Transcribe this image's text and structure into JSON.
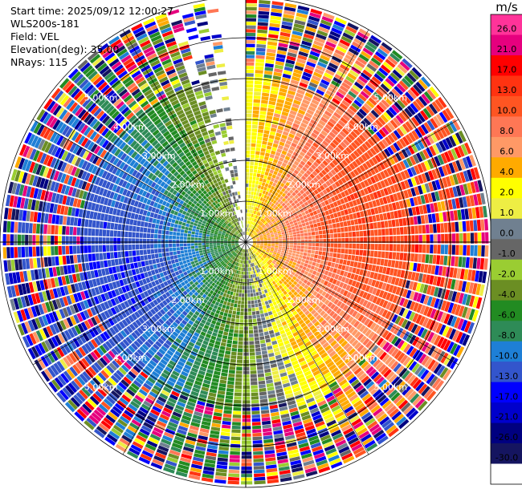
{
  "info": {
    "start_time": "Start time: 2025/09/12 12:00:27",
    "instrument": "WLS200s-181",
    "field": "Field: VEL",
    "elevation": "Elevation(deg): 35.00",
    "nrays": "NRays: 115"
  },
  "chart_data": {
    "type": "heatmap",
    "projection": "polar-ppi",
    "field": "VEL",
    "units": "m/s",
    "elevation_deg": 35.0,
    "n_rays": 115,
    "max_range_km": 6.0,
    "range_rings_km": [
      1.0,
      2.0,
      3.0,
      4.0,
      5.0,
      6.0
    ],
    "range_ring_labels": [
      "1.00km",
      "2.00km",
      "3.00km",
      "4.00km",
      "5.00km"
    ],
    "colorbar": {
      "label": "m/s",
      "ticks": [
        "26.0",
        "21.0",
        "17.0",
        "13.0",
        "10.0",
        "8.0",
        "6.0",
        "4.0",
        "2.0",
        "1.0",
        "0.0",
        "-1.0",
        "-2.0",
        "-4.0",
        "-6.0",
        "-8.0",
        "-10.0",
        "-13.0",
        "-17.0",
        "-21.0",
        "-26.0",
        "-30.0"
      ],
      "colors": [
        "#ff3399",
        "#e6007e",
        "#ff0000",
        "#ff3311",
        "#ff5522",
        "#ff7755",
        "#ff9966",
        "#ffaa00",
        "#ffff00",
        "#eeee44",
        "#708090",
        "#666666",
        "#9acd32",
        "#6b8e23",
        "#228b22",
        "#2e8b57",
        "#1e7fd6",
        "#3355cc",
        "#0000ff",
        "#0000cc",
        "#000080",
        "#151560",
        "#ffffff"
      ]
    },
    "wind_pattern": {
      "positive_core_azimuth_deg": 80,
      "negative_core_azimuth_deg": 240,
      "data_gap_azimuth_deg": [
        341,
        361
      ],
      "noisy_beyond_km": 4.0
    }
  }
}
